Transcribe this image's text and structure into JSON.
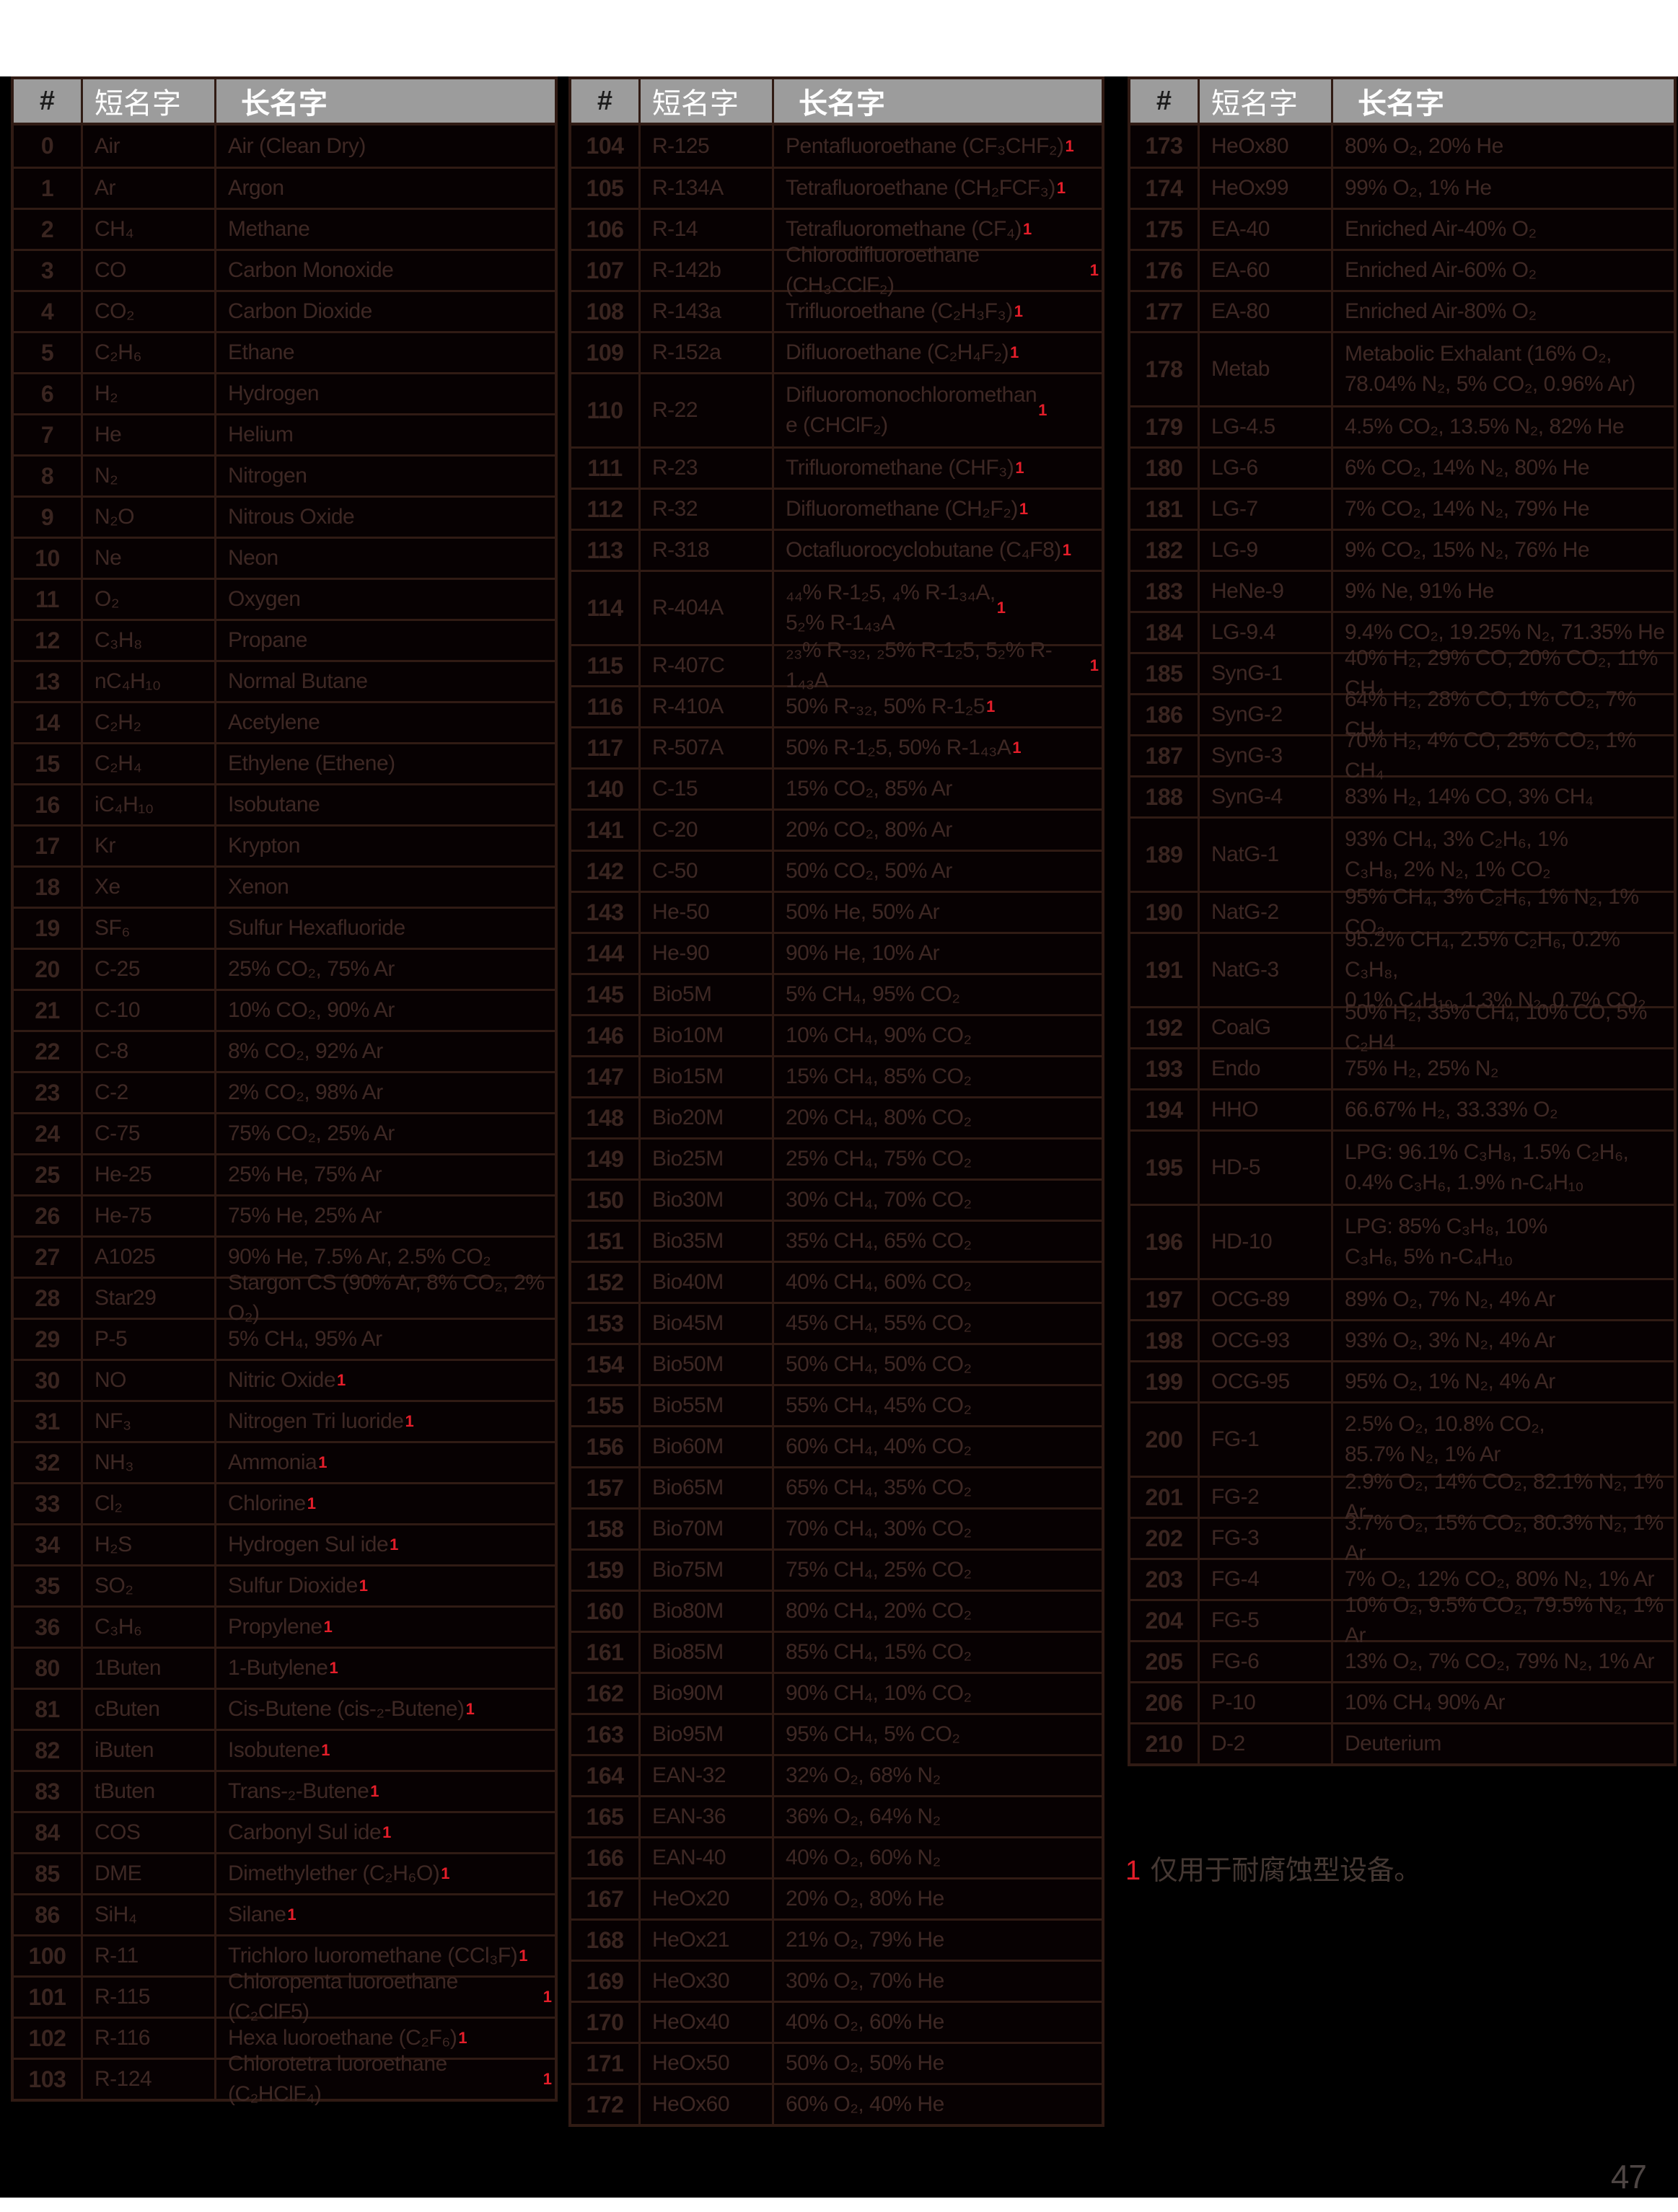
{
  "page": {
    "footnote_marker": "1",
    "footnote_text": "仅用于耐腐蚀型设备。",
    "page_number": "47"
  },
  "header": {
    "num": "#",
    "short": "短名字",
    "long": "长名字"
  },
  "tables": [
    {
      "rows": [
        {
          "n": "0",
          "s": "Air",
          "l": "Air (Clean Dry)"
        },
        {
          "n": "1",
          "s": "Ar",
          "l": "Argon"
        },
        {
          "n": "2",
          "s": "CH₄",
          "l": "Methane"
        },
        {
          "n": "3",
          "s": "CO",
          "l": "Carbon Monoxide"
        },
        {
          "n": "4",
          "s": "CO₂",
          "l": "Carbon Dioxide"
        },
        {
          "n": "5",
          "s": "C₂H₆",
          "l": "Ethane"
        },
        {
          "n": "6",
          "s": "H₂",
          "l": "Hydrogen"
        },
        {
          "n": "7",
          "s": "He",
          "l": "Helium"
        },
        {
          "n": "8",
          "s": "N₂",
          "l": "Nitrogen"
        },
        {
          "n": "9",
          "s": "N₂O",
          "l": "Nitrous Oxide"
        },
        {
          "n": "10",
          "s": "Ne",
          "l": "Neon"
        },
        {
          "n": "11",
          "s": "O₂",
          "l": "Oxygen"
        },
        {
          "n": "12",
          "s": "C₃H₈",
          "l": "Propane"
        },
        {
          "n": "13",
          "s": "nC₄H₁₀",
          "l": "Normal Butane"
        },
        {
          "n": "14",
          "s": "C₂H₂",
          "l": "Acetylene"
        },
        {
          "n": "15",
          "s": "C₂H₄",
          "l": "Ethylene (Ethene)"
        },
        {
          "n": "16",
          "s": "iC₄H₁₀",
          "l": "Isobutane"
        },
        {
          "n": "17",
          "s": "Kr",
          "l": "Krypton"
        },
        {
          "n": "18",
          "s": "Xe",
          "l": "Xenon"
        },
        {
          "n": "19",
          "s": "SF₆",
          "l": "Sulfur Hexafluoride"
        },
        {
          "n": "20",
          "s": "C-25",
          "l": "25% CO₂, 75% Ar"
        },
        {
          "n": "21",
          "s": "C-10",
          "l": "10% CO₂, 90% Ar"
        },
        {
          "n": "22",
          "s": "C-8",
          "l": "8% CO₂, 92% Ar"
        },
        {
          "n": "23",
          "s": "C-2",
          "l": "2% CO₂, 98% Ar"
        },
        {
          "n": "24",
          "s": "C-75",
          "l": "75% CO₂, 25% Ar"
        },
        {
          "n": "25",
          "s": "He-25",
          "l": "25% He, 75% Ar"
        },
        {
          "n": "26",
          "s": "He-75",
          "l": "75% He, 25% Ar"
        },
        {
          "n": "27",
          "s": "A1025",
          "l": "90% He, 7.5% Ar, 2.5% CO₂"
        },
        {
          "n": "28",
          "s": "Star29",
          "l": "Stargon CS (90% Ar, 8% CO₂, 2% O₂)"
        },
        {
          "n": "29",
          "s": "P-5",
          "l": "5% CH₄, 95% Ar"
        },
        {
          "n": "30",
          "s": "NO",
          "l": "Nitric Oxide",
          "fn": true
        },
        {
          "n": "31",
          "s": "NF₃",
          "l": "Nitrogen Tri luoride",
          "fn": true
        },
        {
          "n": "32",
          "s": "NH₃",
          "l": "Ammonia",
          "fn": true
        },
        {
          "n": "33",
          "s": "Cl₂",
          "l": "Chlorine",
          "fn": true
        },
        {
          "n": "34",
          "s": "H₂S",
          "l": "Hydrogen Sul ide",
          "fn": true
        },
        {
          "n": "35",
          "s": "SO₂",
          "l": "Sulfur Dioxide",
          "fn": true
        },
        {
          "n": "36",
          "s": "C₃H₆",
          "l": "Propylene",
          "fn": true
        },
        {
          "n": "80",
          "s": "1Buten",
          "l": "1-Butylene",
          "fn": true
        },
        {
          "n": "81",
          "s": "cButen",
          "l": "Cis-Butene (cis-₂-Butene)",
          "fn": true
        },
        {
          "n": "82",
          "s": "iButen",
          "l": "Isobutene",
          "fn": true
        },
        {
          "n": "83",
          "s": "tButen",
          "l": "Trans-₂-Butene",
          "fn": true
        },
        {
          "n": "84",
          "s": "COS",
          "l": "Carbonyl Sul ide",
          "fn": true
        },
        {
          "n": "85",
          "s": "DME",
          "l": "Dimethylether (C₂H₆O)",
          "fn": true
        },
        {
          "n": "86",
          "s": "SiH₄",
          "l": "Silane",
          "fn": true
        },
        {
          "n": "100",
          "s": "R-11",
          "l": "Trichloro luoromethane (CCl₃F)",
          "fn": true
        },
        {
          "n": "101",
          "s": "R-115",
          "l": "Chloropenta luoroethane (C₂ClF5)",
          "fn": true
        },
        {
          "n": "102",
          "s": "R-116",
          "l": "Hexa luoroethane (C₂F₆)",
          "fn": true
        },
        {
          "n": "103",
          "s": "R-124",
          "l": "Chlorotetra luoroethane (C₂HClF₄)",
          "fn": true
        }
      ]
    },
    {
      "rows": [
        {
          "n": "104",
          "s": "R-125",
          "l": "Pentafluoroethane (CF₃CHF₂)",
          "fn": true
        },
        {
          "n": "105",
          "s": "R-134A",
          "l": "Tetrafluoroethane (CH₂FCF₃)",
          "fn": true
        },
        {
          "n": "106",
          "s": "R-14",
          "l": "Tetrafluoromethane (CF₄)",
          "fn": true
        },
        {
          "n": "107",
          "s": "R-142b",
          "l": "Chlorodifluoroethane (CH₃CClF₂)",
          "fn": true
        },
        {
          "n": "108",
          "s": "R-143a",
          "l": "Trifluoroethane (C₂H₃F₃)",
          "fn": true
        },
        {
          "n": "109",
          "s": "R-152a",
          "l": "Difluoroethane (C₂H₄F₂)",
          "fn": true
        },
        {
          "n": "110",
          "s": "R-22",
          "l": "Difluoromonochloromethan\ne (CHClF₂)",
          "fn": true,
          "h": 2
        },
        {
          "n": "111",
          "s": "R-23",
          "l": "Trifluoromethane (CHF₃)",
          "fn": true
        },
        {
          "n": "112",
          "s": "R-32",
          "l": "Difluoromethane (CH₂F₂)",
          "fn": true
        },
        {
          "n": "113",
          "s": "R-318",
          "l": "Octafluorocyclobutane (C₄F8)",
          "fn": true
        },
        {
          "n": "114",
          "s": "R-404A",
          "l": "₄₄% R-1₂5, ₄% R-1₃₄A,\n5₂% R-1₄₃A",
          "fn": true,
          "h": 2
        },
        {
          "n": "115",
          "s": "R-407C",
          "l": "₂₃% R-₃₂, ₂5% R-1₂5, 5₂% R-1₄₃A",
          "fn": true
        },
        {
          "n": "116",
          "s": "R-410A",
          "l": "50% R-₃₂, 50% R-1₂5",
          "fn": true
        },
        {
          "n": "117",
          "s": "R-507A",
          "l": "50% R-1₂5, 50% R-1₄₃A",
          "fn": true
        },
        {
          "n": "140",
          "s": "C-15",
          "l": "15% CO₂, 85% Ar"
        },
        {
          "n": "141",
          "s": "C-20",
          "l": "20% CO₂, 80% Ar"
        },
        {
          "n": "142",
          "s": "C-50",
          "l": "50% CO₂, 50% Ar"
        },
        {
          "n": "143",
          "s": "He-50",
          "l": "50% He, 50% Ar"
        },
        {
          "n": "144",
          "s": "He-90",
          "l": "90% He, 10% Ar"
        },
        {
          "n": "145",
          "s": "Bio5M",
          "l": "5% CH₄, 95% CO₂"
        },
        {
          "n": "146",
          "s": "Bio10M",
          "l": "10% CH₄, 90% CO₂"
        },
        {
          "n": "147",
          "s": "Bio15M",
          "l": "15% CH₄, 85% CO₂"
        },
        {
          "n": "148",
          "s": "Bio20M",
          "l": "20% CH₄, 80% CO₂"
        },
        {
          "n": "149",
          "s": "Bio25M",
          "l": "25% CH₄, 75% CO₂"
        },
        {
          "n": "150",
          "s": "Bio30M",
          "l": "30% CH₄, 70% CO₂"
        },
        {
          "n": "151",
          "s": "Bio35M",
          "l": "35% CH₄, 65% CO₂"
        },
        {
          "n": "152",
          "s": "Bio40M",
          "l": "40% CH₄, 60% CO₂"
        },
        {
          "n": "153",
          "s": "Bio45M",
          "l": "45% CH₄, 55% CO₂"
        },
        {
          "n": "154",
          "s": "Bio50M",
          "l": "50% CH₄, 50% CO₂"
        },
        {
          "n": "155",
          "s": "Bio55M",
          "l": "55% CH₄, 45% CO₂"
        },
        {
          "n": "156",
          "s": "Bio60M",
          "l": "60% CH₄, 40% CO₂"
        },
        {
          "n": "157",
          "s": "Bio65M",
          "l": "65% CH₄, 35% CO₂"
        },
        {
          "n": "158",
          "s": "Bio70M",
          "l": "70% CH₄, 30% CO₂"
        },
        {
          "n": "159",
          "s": "Bio75M",
          "l": "75% CH₄, 25% CO₂"
        },
        {
          "n": "160",
          "s": "Bio80M",
          "l": "80% CH₄, 20% CO₂"
        },
        {
          "n": "161",
          "s": "Bio85M",
          "l": "85% CH₄, 15% CO₂"
        },
        {
          "n": "162",
          "s": "Bio90M",
          "l": "90% CH₄, 10% CO₂"
        },
        {
          "n": "163",
          "s": "Bio95M",
          "l": "95% CH₄, 5% CO₂"
        },
        {
          "n": "164",
          "s": "EAN-32",
          "l": "32% O₂, 68% N₂"
        },
        {
          "n": "165",
          "s": "EAN-36",
          "l": "36% O₂, 64% N₂"
        },
        {
          "n": "166",
          "s": "EAN-40",
          "l": "40% O₂, 60% N₂"
        },
        {
          "n": "167",
          "s": "HeOx20",
          "l": "20% O₂, 80% He"
        },
        {
          "n": "168",
          "s": "HeOx21",
          "l": "21% O₂, 79% He"
        },
        {
          "n": "169",
          "s": "HeOx30",
          "l": "30% O₂, 70% He"
        },
        {
          "n": "170",
          "s": "HeOx40",
          "l": "40% O₂, 60% He"
        },
        {
          "n": "171",
          "s": "HeOx50",
          "l": "50% O₂, 50% He"
        },
        {
          "n": "172",
          "s": "HeOx60",
          "l": "60% O₂, 40% He"
        }
      ]
    },
    {
      "rows": [
        {
          "n": "173",
          "s": "HeOx80",
          "l": "80% O₂, 20% He"
        },
        {
          "n": "174",
          "s": "HeOx99",
          "l": "99% O₂, 1% He"
        },
        {
          "n": "175",
          "s": "EA-40",
          "l": "Enriched Air-40% O₂"
        },
        {
          "n": "176",
          "s": "EA-60",
          "l": "Enriched Air-60% O₂"
        },
        {
          "n": "177",
          "s": "EA-80",
          "l": "Enriched Air-80% O₂"
        },
        {
          "n": "178",
          "s": "Metab",
          "l": "Metabolic Exhalant (16% O₂,\n78.04% N₂, 5% CO₂, 0.96% Ar)",
          "h": 2
        },
        {
          "n": "179",
          "s": "LG-4.5",
          "l": "4.5% CO₂, 13.5% N₂, 82% He"
        },
        {
          "n": "180",
          "s": "LG-6",
          "l": "6% CO₂, 14% N₂, 80% He"
        },
        {
          "n": "181",
          "s": "LG-7",
          "l": "7% CO₂, 14% N₂, 79% He"
        },
        {
          "n": "182",
          "s": "LG-9",
          "l": "9% CO₂, 15% N₂, 76% He"
        },
        {
          "n": "183",
          "s": "HeNe-9",
          "l": "9% Ne, 91% He"
        },
        {
          "n": "184",
          "s": "LG-9.4",
          "l": "9.4% CO₂, 19.25% N₂, 71.35% He"
        },
        {
          "n": "185",
          "s": "SynG-1",
          "l": "40% H₂, 29% CO, 20% CO₂, 11% CH₄"
        },
        {
          "n": "186",
          "s": "SynG-2",
          "l": "64% H₂, 28% CO, 1% CO₂, 7% CH₄"
        },
        {
          "n": "187",
          "s": "SynG-3",
          "l": "70% H₂, 4% CO, 25% CO₂, 1% CH₄"
        },
        {
          "n": "188",
          "s": "SynG-4",
          "l": "83% H₂, 14% CO, 3% CH₄"
        },
        {
          "n": "189",
          "s": "NatG-1",
          "l": "93% CH₄, 3% C₂H₆, 1%\nC₃H₈, 2% N₂, 1% CO₂",
          "h": 2
        },
        {
          "n": "190",
          "s": "NatG-2",
          "l": "95% CH₄, 3% C₂H₆, 1% N₂, 1% CO₂"
        },
        {
          "n": "191",
          "s": "NatG-3",
          "l": "95.2% CH₄, 2.5% C₂H₆, 0.2% C₃H₈,\n0.1% C₄H₁₀, 1.3% N₂, 0.7% CO₂",
          "h": 2
        },
        {
          "n": "192",
          "s": "CoalG",
          "l": "50% H₂, 35% CH₄, 10% CO, 5% C₂H4"
        },
        {
          "n": "193",
          "s": "Endo",
          "l": "75% H₂, 25% N₂"
        },
        {
          "n": "194",
          "s": "HHO",
          "l": "66.67% H₂, 33.33% O₂"
        },
        {
          "n": "195",
          "s": "HD-5",
          "l": "LPG: 96.1% C₃H₈, 1.5% C₂H₆,\n0.4% C₃H₆, 1.9% n-C₄H₁₀",
          "h": 2
        },
        {
          "n": "196",
          "s": "HD-10",
          "l": "LPG: 85% C₃H₈, 10%\nC₃H₆, 5% n-C₄H₁₀",
          "h": 2
        },
        {
          "n": "197",
          "s": "OCG-89",
          "l": "89% O₂, 7% N₂, 4% Ar"
        },
        {
          "n": "198",
          "s": "OCG-93",
          "l": "93% O₂, 3% N₂, 4% Ar"
        },
        {
          "n": "199",
          "s": "OCG-95",
          "l": "95% O₂, 1% N₂, 4% Ar"
        },
        {
          "n": "200",
          "s": "FG-1",
          "l": "2.5% O₂, 10.8% CO₂,\n85.7% N₂, 1% Ar",
          "h": 2
        },
        {
          "n": "201",
          "s": "FG-2",
          "l": "2.9% O₂, 14% CO₂, 82.1% N₂, 1% Ar"
        },
        {
          "n": "202",
          "s": "FG-3",
          "l": "3.7% O₂, 15% CO₂, 80.3% N₂, 1% Ar"
        },
        {
          "n": "203",
          "s": "FG-4",
          "l": "7% O₂, 12% CO₂, 80% N₂, 1% Ar"
        },
        {
          "n": "204",
          "s": "FG-5",
          "l": "10% O₂, 9.5% CO₂, 79.5% N₂, 1% Ar"
        },
        {
          "n": "205",
          "s": "FG-6",
          "l": "13% O₂, 7% CO₂, 79% N₂, 1% Ar"
        },
        {
          "n": "206",
          "s": "P-10",
          "l": "10% CH₄ 90% Ar"
        },
        {
          "n": "210",
          "s": "D-2",
          "l": "Deuterium"
        }
      ]
    }
  ]
}
